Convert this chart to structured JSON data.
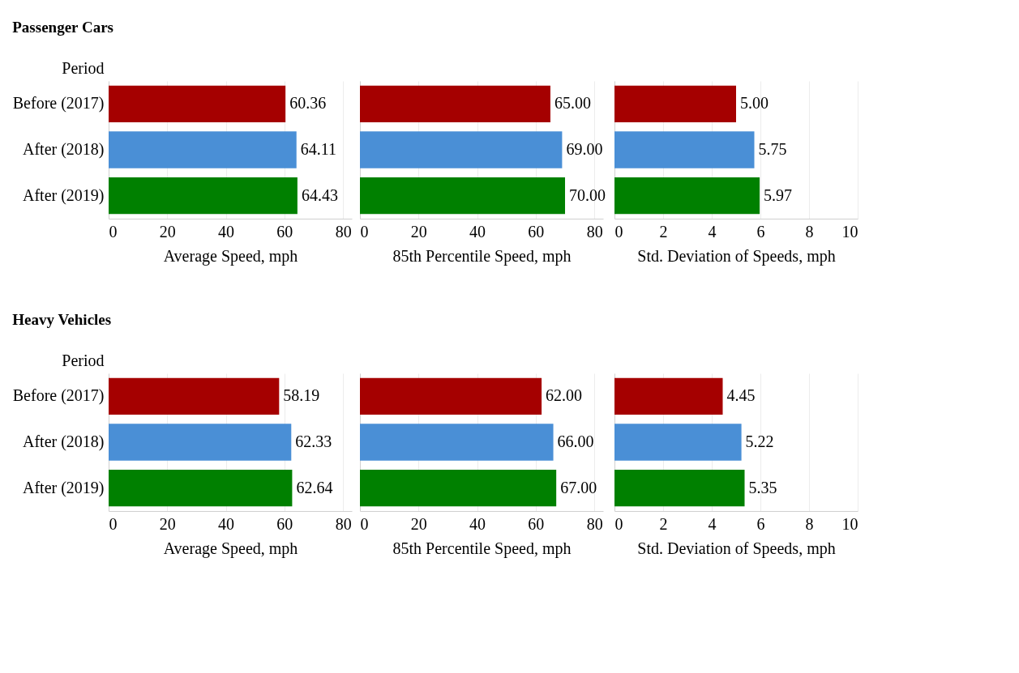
{
  "chart_data": [
    {
      "type": "bar",
      "orientation": "horizontal",
      "title": "Passenger Cars",
      "ylabel": "Period",
      "xlabel": "Average Speed, mph",
      "categories": [
        "Before (2017)",
        "After (2018)",
        "After (2019)"
      ],
      "values": [
        60.36,
        64.11,
        64.43
      ],
      "colors": [
        "#a50000",
        "#4a8fd6",
        "#008000"
      ],
      "value_labels": [
        "60.36",
        "64.11",
        "64.43"
      ],
      "xlim": [
        0,
        83
      ],
      "xticks": [
        0,
        20,
        40,
        60,
        80
      ],
      "grid": "x"
    },
    {
      "type": "bar",
      "orientation": "horizontal",
      "xlabel": "85th Percentile Speed, mph",
      "categories": [
        null,
        null,
        null
      ],
      "values": [
        65,
        69,
        70
      ],
      "colors": [
        "#a50000",
        "#4a8fd6",
        "#008000"
      ],
      "value_labels": [
        "65.00",
        "69.00",
        "70.00"
      ],
      "xlim": [
        0,
        83
      ],
      "xticks": [
        0,
        20,
        40,
        60,
        80
      ],
      "grid": "x",
      "tick_labels": "x"
    },
    {
      "type": "bar",
      "orientation": "horizontal",
      "xlabel": "Std. Deviation of Speeds, mph",
      "categories": [
        null,
        null,
        null
      ],
      "values": [
        5.0,
        5.75,
        5.97
      ],
      "colors": [
        "#a50000",
        "#4a8fd6",
        "#008000"
      ],
      "value_labels": [
        "5.00",
        "5.75",
        "5.97"
      ],
      "xlim": [
        0,
        10
      ],
      "xticks": [
        0,
        2,
        4,
        6,
        8,
        10
      ],
      "grid": "x",
      "tick_labels": "x"
    },
    {
      "type": "bar",
      "orientation": "horizontal",
      "title": "Heavy Vehicles",
      "ylabel": "Period",
      "xlabel": "Average Speed, mph",
      "categories": [
        "Before (2017)",
        "After (2018)",
        "After (2019)"
      ],
      "values": [
        58.19,
        62.33,
        62.64
      ],
      "colors": [
        "#a50000",
        "#4a8fd6",
        "#008000"
      ],
      "value_labels": [
        "58.19",
        "62.33",
        "62.64"
      ],
      "xlim": [
        0,
        83
      ],
      "xticks": [
        0,
        20,
        40,
        60,
        80
      ],
      "grid": "x"
    },
    {
      "type": "bar",
      "orientation": "horizontal",
      "xlabel": "85th Percentile Speed, mph",
      "categories": [
        null,
        null,
        null
      ],
      "values": [
        62,
        66,
        67
      ],
      "colors": [
        "#a50000",
        "#4a8fd6",
        "#008000"
      ],
      "value_labels": [
        "62.00",
        "66.00",
        "67.00"
      ],
      "xlim": [
        0,
        83
      ],
      "xticks": [
        0,
        20,
        40,
        60,
        80
      ],
      "grid": "x",
      "tick_labels": "x"
    },
    {
      "type": "bar",
      "orientation": "horizontal",
      "xlabel": "Std. Deviation of Speeds, mph",
      "categories": [
        null,
        null,
        null
      ],
      "values": [
        4.45,
        5.22,
        5.35
      ],
      "colors": [
        "#a50000",
        "#4a8fd6",
        "#008000"
      ],
      "value_labels": [
        "4.45",
        "5.22",
        "5.35"
      ],
      "xlim": [
        0,
        10
      ],
      "xticks": [
        0,
        2,
        4,
        6,
        8,
        10
      ],
      "grid": "x",
      "tick_labels": "x"
    }
  ]
}
